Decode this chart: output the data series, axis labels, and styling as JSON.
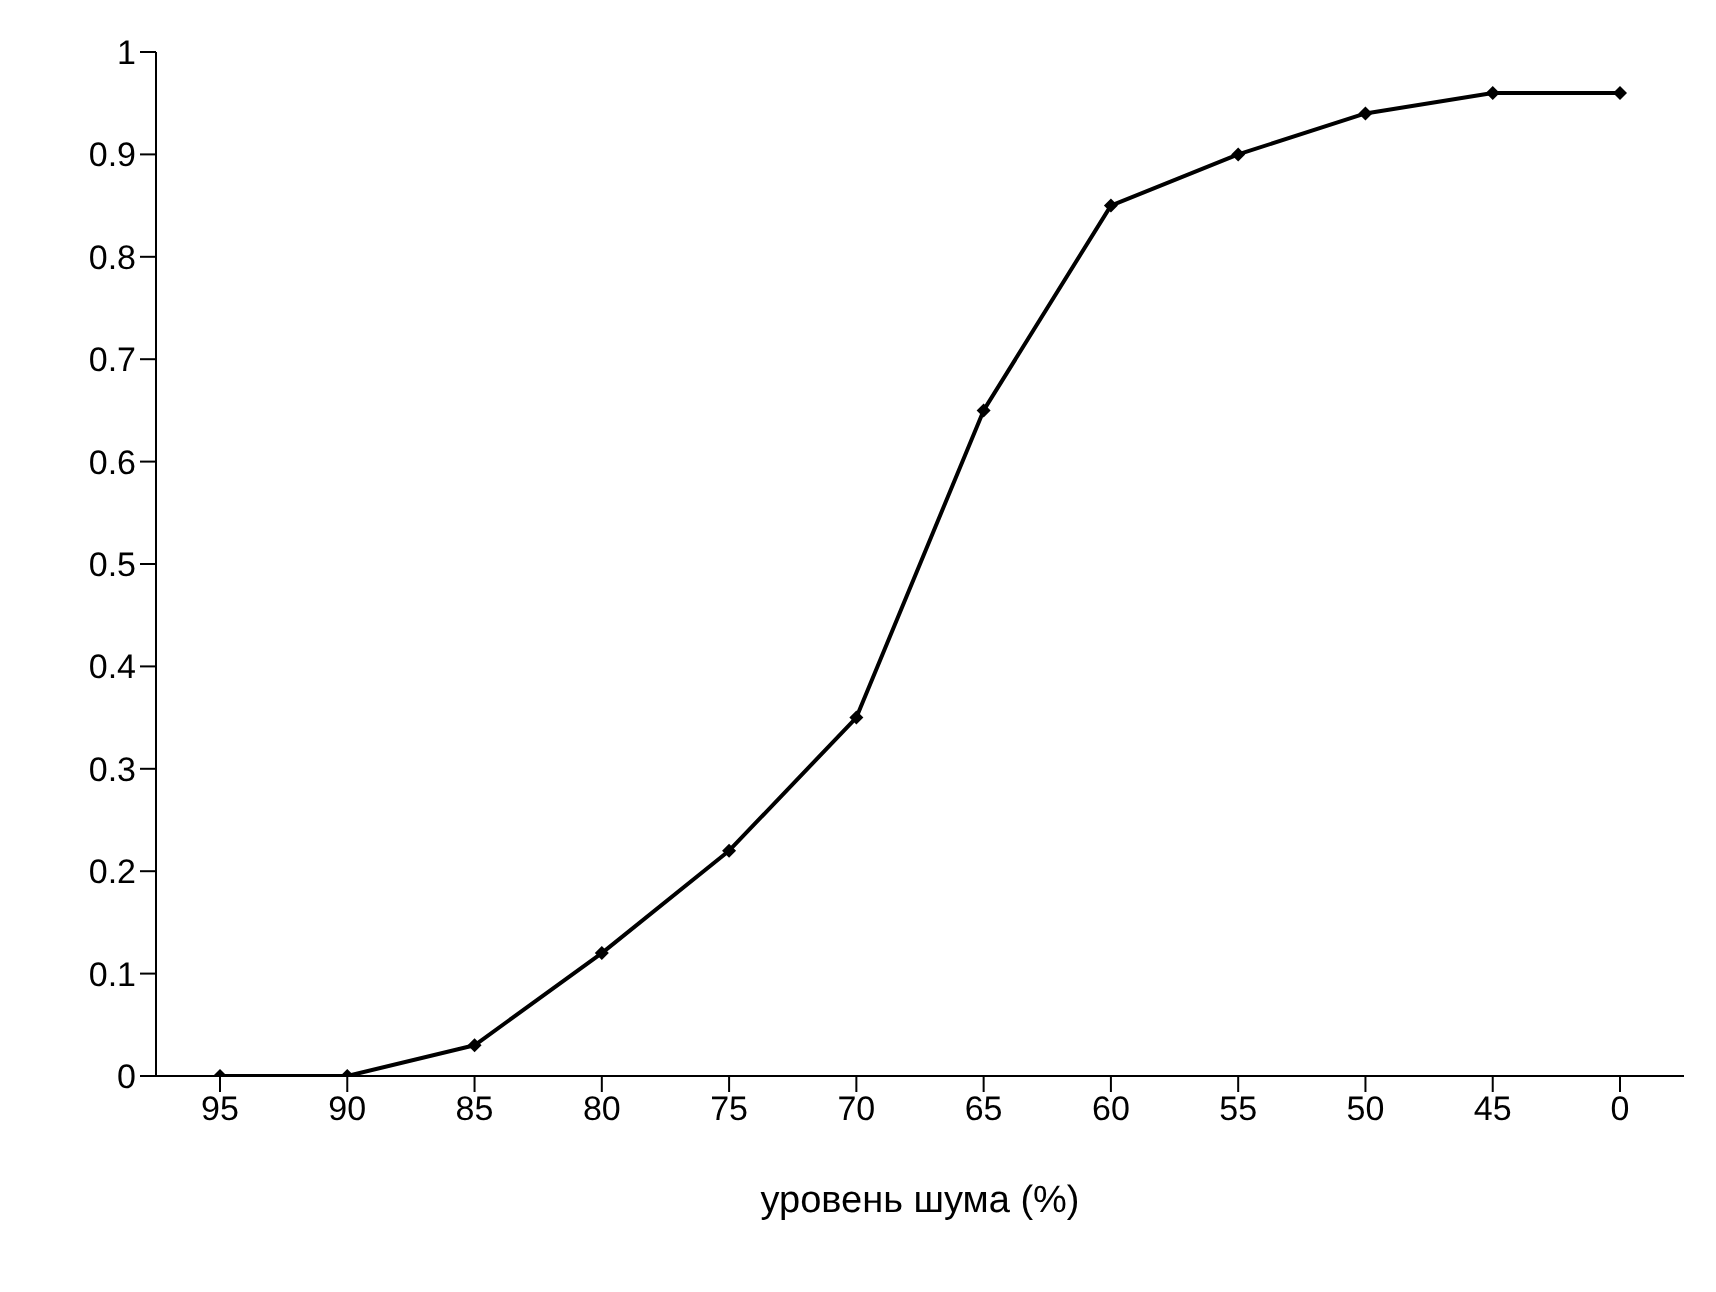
{
  "chart_data": {
    "type": "line",
    "xlabel": "уровень шума (%)",
    "categories": [
      "95",
      "90",
      "85",
      "80",
      "75",
      "70",
      "65",
      "60",
      "55",
      "50",
      "45",
      "0"
    ],
    "series": [
      {
        "color": "#000000",
        "values": [
          0,
          0,
          0.03,
          0.12,
          0.22,
          0.35,
          0.65,
          0.85,
          0.9,
          0.94,
          0.96,
          0.96
        ]
      }
    ],
    "ylim": [
      0,
      1
    ],
    "yticks": [
      0,
      0.1,
      0.2,
      0.3,
      0.4,
      0.5,
      0.6,
      0.7,
      0.8,
      0.9,
      1
    ],
    "grid": false,
    "legend": false,
    "marker": "diamond",
    "line_style": "solid"
  }
}
